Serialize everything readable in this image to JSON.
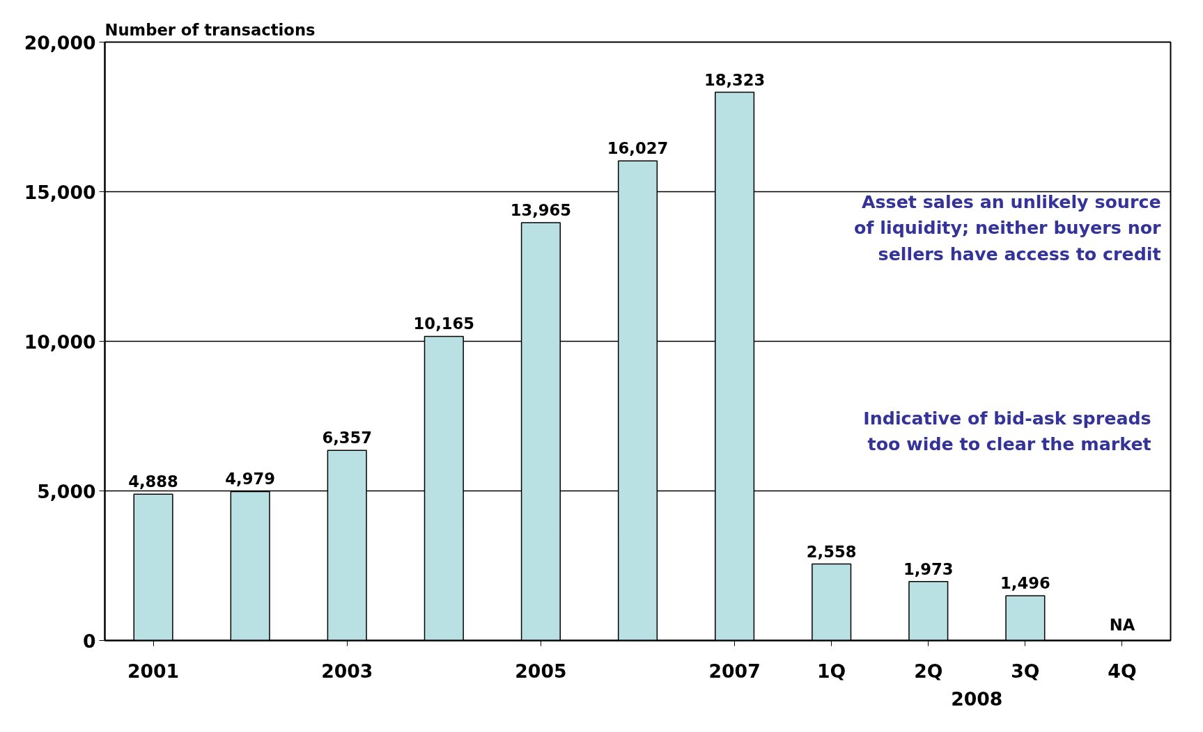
{
  "chart_data": {
    "type": "bar",
    "ylabel": "Number of transactions",
    "categories": [
      "2001",
      null,
      "2003",
      null,
      "2005",
      null,
      "2007",
      "1Q",
      "2Q",
      "3Q",
      "4Q"
    ],
    "values": [
      4888,
      4979,
      6357,
      10165,
      13965,
      16027,
      18323,
      2558,
      1973,
      1496,
      null
    ],
    "value_labels": [
      "4,888",
      "4,979",
      "6,357",
      "10,165",
      "13,965",
      "16,027",
      "18,323",
      "2,558",
      "1,973",
      "1,496",
      "NA"
    ],
    "color": "#b9e0e2",
    "ylim": [
      0,
      20000
    ],
    "yticks": [
      {
        "value": 0,
        "label": "0"
      },
      {
        "value": 5000,
        "label": "5,000"
      },
      {
        "value": 10000,
        "label": "10,000"
      },
      {
        "value": 15000,
        "label": "15,000"
      },
      {
        "value": 20000,
        "label": "20,000"
      }
    ],
    "grid": "y",
    "annotations": [
      "Asset sales an unlikely source\nof liquidity; neither buyers nor\nsellers have access to credit",
      "Indicative of bid-ask spreads\ntoo wide to clear the market",
      "2008"
    ]
  }
}
